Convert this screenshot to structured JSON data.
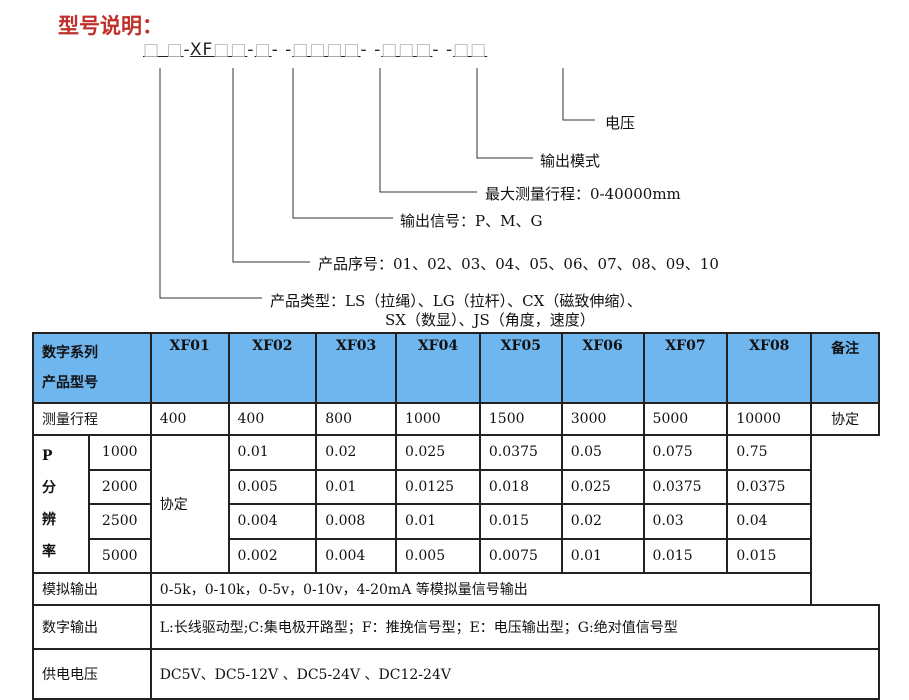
{
  "title": "型号说明：",
  "code": {
    "p1": "□ □",
    "s1": "-",
    "p2a": "XF",
    "p2b": "□□",
    "s2": "-",
    "p3": "□",
    "s3": "- -",
    "p4": "□□□□",
    "s4": "- -",
    "p5": "□□□",
    "s5": "- -",
    "p6": "□□"
  },
  "labels": {
    "voltage": "电压",
    "output_mode": "输出模式",
    "max_range": "最大测量行程：0-40000mm",
    "output_signal": "输出信号：P、M、G",
    "serial": "产品序号：01、02、03、04、05、06、07、08、09、10",
    "type_line1": "产品类型：LS（拉绳）、LG（拉杆）、CX（磁致伸缩）、",
    "type_line2": "SX（数显）、JS（角度，速度）"
  },
  "table": {
    "header_l1": "数字系列",
    "header_l2": "产品型号",
    "models": [
      "XF01",
      "XF02",
      "XF03",
      "XF04",
      "XF05",
      "XF06",
      "XF07",
      "XF08"
    ],
    "remark": "备注",
    "range_label": "测量行程",
    "ranges": [
      "400",
      "400",
      "800",
      "1000",
      "1500",
      "3000",
      "5000",
      "10000"
    ],
    "res_label": [
      "P",
      "分",
      "辨",
      "率"
    ],
    "res_rows": [
      {
        "p": "1000",
        "vals": [
          "0.01",
          "0.02",
          "0.025",
          "0.0375",
          "0.05",
          "0.075",
          "0.75"
        ]
      },
      {
        "p": "2000",
        "vals": [
          "0.005",
          "0.01",
          "0.0125",
          "0.018",
          "0.025",
          "0.0375",
          "0.0375"
        ]
      },
      {
        "p": "2500",
        "vals": [
          "0.004",
          "0.008",
          "0.01",
          "0.015",
          "0.02",
          "0.03",
          "0.04"
        ]
      },
      {
        "p": "5000",
        "vals": [
          "0.002",
          "0.004",
          "0.005",
          "0.0075",
          "0.01",
          "0.015",
          "0.015"
        ]
      }
    ],
    "xf01_res": "协定",
    "remark_val": "协定",
    "analog_label": "模拟输出",
    "analog": "0-5k，0-10k，0-5v，0-10v，4-20mA 等模拟量信号输出",
    "digital_label": "数字输出",
    "digital": "L:长线驱动型;C:集电极开路型；F：推挽信号型；E：电压输出型；G:绝对值信号型",
    "power_label": "供电电压",
    "power": "DC5V、DC5-12V 、DC5-24V 、DC12-24V"
  }
}
